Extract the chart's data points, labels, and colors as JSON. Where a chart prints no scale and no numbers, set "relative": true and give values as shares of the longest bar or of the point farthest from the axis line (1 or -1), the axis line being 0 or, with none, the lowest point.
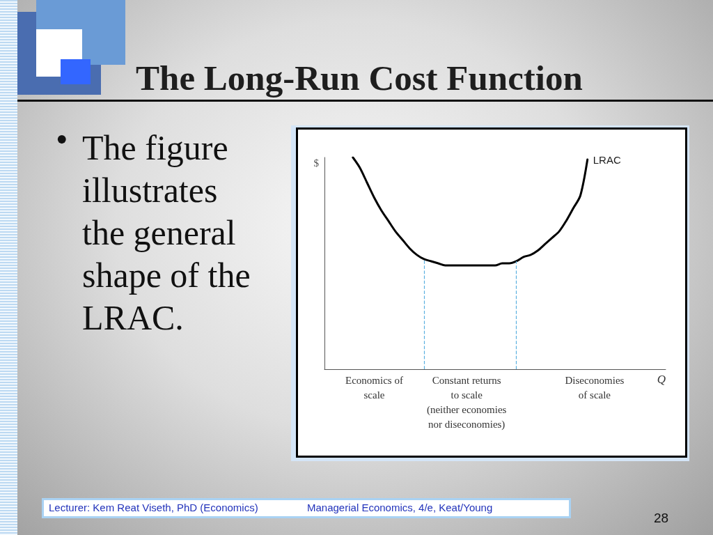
{
  "chart_data": {
    "type": "line",
    "title": "The Long-Run Cost Function",
    "xlabel": "Q",
    "ylabel": "$",
    "relative": true,
    "tick_labels": "x",
    "categories": [
      null,
      null,
      null,
      null,
      null,
      null,
      null,
      "Economics of\nscale",
      null,
      null,
      null,
      null,
      null,
      null,
      null,
      null,
      null,
      null,
      null,
      null,
      "Constant returns\nto scale\n(neither economies\nnor diseconomies)",
      null,
      null,
      null,
      null,
      null,
      null,
      null,
      null,
      null,
      null,
      null,
      null,
      null,
      null,
      null,
      null,
      null,
      "Diseconomies\nof scale",
      null,
      null,
      null,
      null,
      null,
      null,
      null,
      null,
      null,
      null
    ],
    "series": [
      {
        "name": "LRAC",
        "color": "#000000",
        "values": [
          null,
          null,
          null,
          null,
          1.0,
          0.95,
          0.88,
          0.81,
          0.75,
          0.7,
          0.65,
          0.61,
          0.57,
          0.54,
          0.52,
          0.51,
          0.5,
          0.49,
          0.49,
          0.49,
          0.49,
          0.49,
          0.49,
          0.49,
          0.49,
          0.5,
          0.5,
          0.51,
          0.53,
          0.54,
          0.56,
          0.59,
          0.62,
          0.65,
          0.7,
          0.76,
          0.82,
          0.99,
          null,
          null,
          null,
          null,
          null,
          null,
          null,
          null,
          null,
          null,
          null
        ]
      }
    ],
    "annotations": [
      "•",
      "The figure illustrates the general shape of the LRAC.",
      "Lecturer: Kem Reat Viseth, PhD (Economics)",
      "Managerial Economics, 4/e, Keat/Young",
      "28"
    ]
  }
}
